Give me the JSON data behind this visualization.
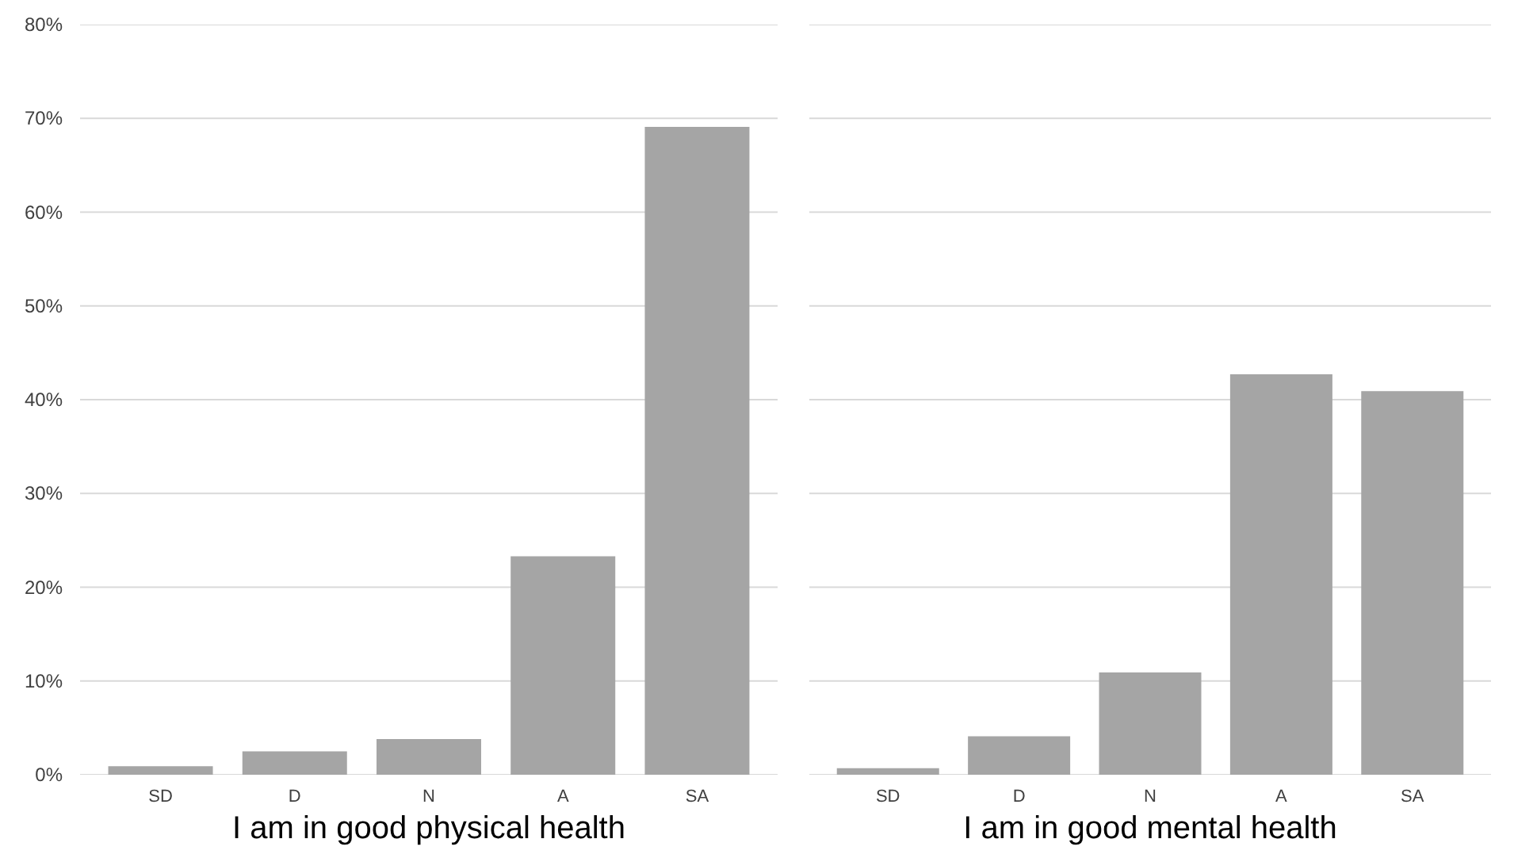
{
  "chart_data": [
    {
      "type": "bar",
      "xlabel": "I am in good physical health",
      "categories": [
        "SD",
        "D",
        "N",
        "A",
        "SA"
      ],
      "values": [
        0.9,
        2.5,
        3.8,
        23.3,
        69.1
      ],
      "color": "#a5a5a5",
      "ylim": [
        0,
        80
      ],
      "yticks": [
        {
          "value": 0,
          "label": "0%"
        },
        {
          "value": 10,
          "label": "10%"
        },
        {
          "value": 20,
          "label": "20%"
        },
        {
          "value": 30,
          "label": "30%"
        },
        {
          "value": 40,
          "label": "40%"
        },
        {
          "value": 50,
          "label": "50%"
        },
        {
          "value": 60,
          "label": "60%"
        },
        {
          "value": 70,
          "label": "70%"
        },
        {
          "value": 80,
          "label": "80%"
        }
      ],
      "grid": "y"
    },
    {
      "type": "bar",
      "xlabel": "I am in good mental health",
      "categories": [
        "SD",
        "D",
        "N",
        "A",
        "SA"
      ],
      "values": [
        0.7,
        4.1,
        10.9,
        42.7,
        40.9
      ],
      "color": "#a5a5a5",
      "ylim": [
        0,
        80
      ],
      "yticks": [
        0,
        10,
        20,
        30,
        40,
        50,
        60,
        70,
        80
      ],
      "grid": "y",
      "tick_labels": "x"
    }
  ]
}
